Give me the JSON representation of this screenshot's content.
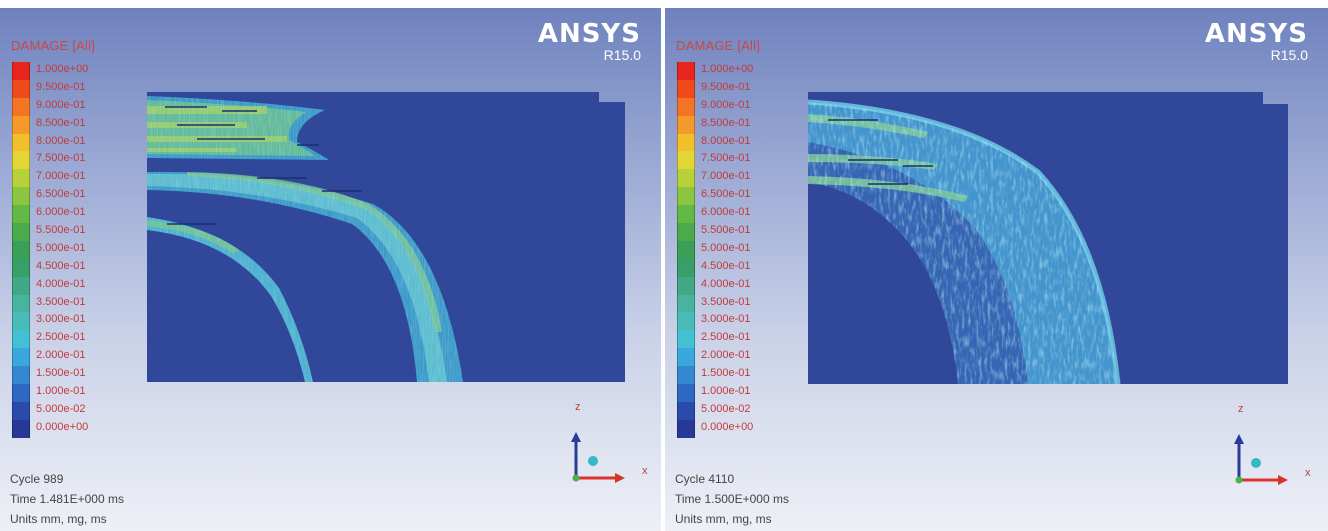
{
  "legend": {
    "title": "DAMAGE [All]",
    "ticks": [
      "1.000e+00",
      "9.500e-01",
      "9.000e-01",
      "8.500e-01",
      "8.000e-01",
      "7.500e-01",
      "7.000e-01",
      "6.500e-01",
      "6.000e-01",
      "5.500e-01",
      "5.000e-01",
      "4.500e-01",
      "4.000e-01",
      "3.500e-01",
      "3.000e-01",
      "2.500e-01",
      "2.000e-01",
      "1.500e-01",
      "1.000e-01",
      "5.000e-02",
      "0.000e+00"
    ],
    "colors": [
      "#e8241c",
      "#ee4a1c",
      "#f27424",
      "#f49a2a",
      "#f2c02c",
      "#e2d634",
      "#b8d03a",
      "#8cc640",
      "#64b846",
      "#4aaa4c",
      "#3aa058",
      "#3a9e68",
      "#40a884",
      "#48b4a0",
      "#4abcb8",
      "#44c0d4",
      "#3aa8dc",
      "#3488d2",
      "#2e68c2",
      "#2a4aac",
      "#283896"
    ]
  },
  "brand": {
    "name": "ANSYS",
    "version": "R15.0"
  },
  "axes": {
    "z": "z",
    "x": "x"
  },
  "panels": [
    {
      "cycle": "Cycle 989",
      "time": "Time 1.481E+000 ms",
      "units": "Units mm, mg, ms"
    },
    {
      "cycle": "Cycle 4110",
      "time": "Time 1.500E+000 ms",
      "units": "Units mm, mg, ms"
    }
  ]
}
